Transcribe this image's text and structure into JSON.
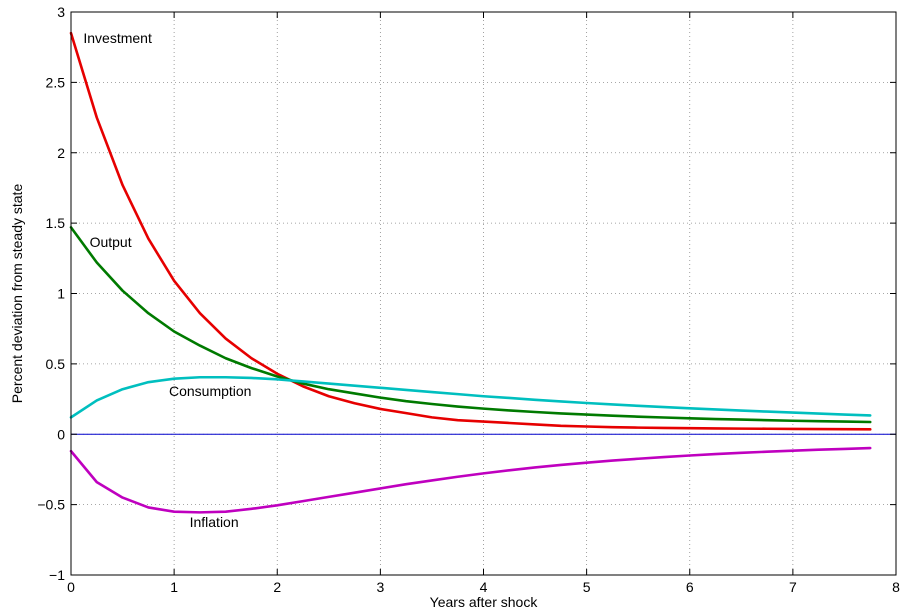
{
  "chart_data": {
    "type": "line",
    "title": "",
    "xlabel": "Years after shock",
    "ylabel": "Percent deviation from steady state",
    "xlim": [
      0,
      8
    ],
    "ylim": [
      -1,
      3
    ],
    "xticks": [
      0,
      1,
      2,
      3,
      4,
      5,
      6,
      7,
      8
    ],
    "xtick_labels": [
      "0",
      "1",
      "2",
      "3",
      "4",
      "5",
      "6",
      "7",
      "8"
    ],
    "yticks": [
      -1,
      -0.5,
      0,
      0.5,
      1,
      1.5,
      2,
      2.5,
      3
    ],
    "ytick_labels": [
      "−1",
      "−0.5",
      "0",
      "0.5",
      "1",
      "1.5",
      "2",
      "2.5",
      "3"
    ],
    "grid": true,
    "legend": "none",
    "x": [
      0,
      0.25,
      0.5,
      0.75,
      1,
      1.25,
      1.5,
      1.75,
      2,
      2.25,
      2.5,
      2.75,
      3,
      3.25,
      3.5,
      3.75,
      4,
      4.25,
      4.5,
      4.75,
      5,
      5.25,
      5.5,
      5.75,
      6,
      6.25,
      6.5,
      6.75,
      7,
      7.25,
      7.5,
      7.75
    ],
    "series": [
      {
        "name": "Investment",
        "color": "#e60000",
        "values": [
          2.85,
          2.25,
          1.77,
          1.39,
          1.09,
          0.86,
          0.68,
          0.54,
          0.43,
          0.34,
          0.27,
          0.22,
          0.18,
          0.15,
          0.12,
          0.1,
          0.09,
          0.08,
          0.07,
          0.06,
          0.055,
          0.05,
          0.047,
          0.045,
          0.043,
          0.041,
          0.04,
          0.039,
          0.038,
          0.037,
          0.036,
          0.035
        ]
      },
      {
        "name": "Output",
        "color": "#007a00",
        "values": [
          1.47,
          1.22,
          1.02,
          0.86,
          0.73,
          0.63,
          0.54,
          0.47,
          0.41,
          0.36,
          0.32,
          0.29,
          0.26,
          0.235,
          0.215,
          0.197,
          0.182,
          0.169,
          0.158,
          0.148,
          0.14,
          0.132,
          0.125,
          0.119,
          0.113,
          0.108,
          0.104,
          0.1,
          0.096,
          0.093,
          0.09,
          0.087
        ]
      },
      {
        "name": "Consumption",
        "color": "#00bfbf",
        "values": [
          0.12,
          0.24,
          0.32,
          0.37,
          0.395,
          0.405,
          0.405,
          0.4,
          0.39,
          0.375,
          0.36,
          0.345,
          0.33,
          0.315,
          0.3,
          0.285,
          0.27,
          0.258,
          0.245,
          0.233,
          0.222,
          0.212,
          0.202,
          0.193,
          0.184,
          0.176,
          0.168,
          0.161,
          0.154,
          0.147,
          0.14,
          0.134
        ]
      },
      {
        "name": "Inflation",
        "color": "#bf00bf",
        "values": [
          -0.12,
          -0.34,
          -0.45,
          -0.52,
          -0.55,
          -0.555,
          -0.55,
          -0.53,
          -0.505,
          -0.475,
          -0.445,
          -0.415,
          -0.385,
          -0.355,
          -0.328,
          -0.302,
          -0.278,
          -0.256,
          -0.236,
          -0.218,
          -0.202,
          -0.187,
          -0.174,
          -0.162,
          -0.151,
          -0.141,
          -0.132,
          -0.124,
          -0.117,
          -0.11,
          -0.104,
          -0.098
        ]
      }
    ],
    "reference_line": {
      "y": 0,
      "color": "#0000cc"
    },
    "annotations": [
      {
        "text": "Investment",
        "x": 0.12,
        "y": 2.78,
        "series": "Investment"
      },
      {
        "text": "Output",
        "x": 0.18,
        "y": 1.33,
        "series": "Output"
      },
      {
        "text": "Consumption",
        "x": 0.95,
        "y": 0.27,
        "series": "Consumption"
      },
      {
        "text": "Inflation",
        "x": 1.15,
        "y": -0.66,
        "series": "Inflation"
      }
    ]
  }
}
